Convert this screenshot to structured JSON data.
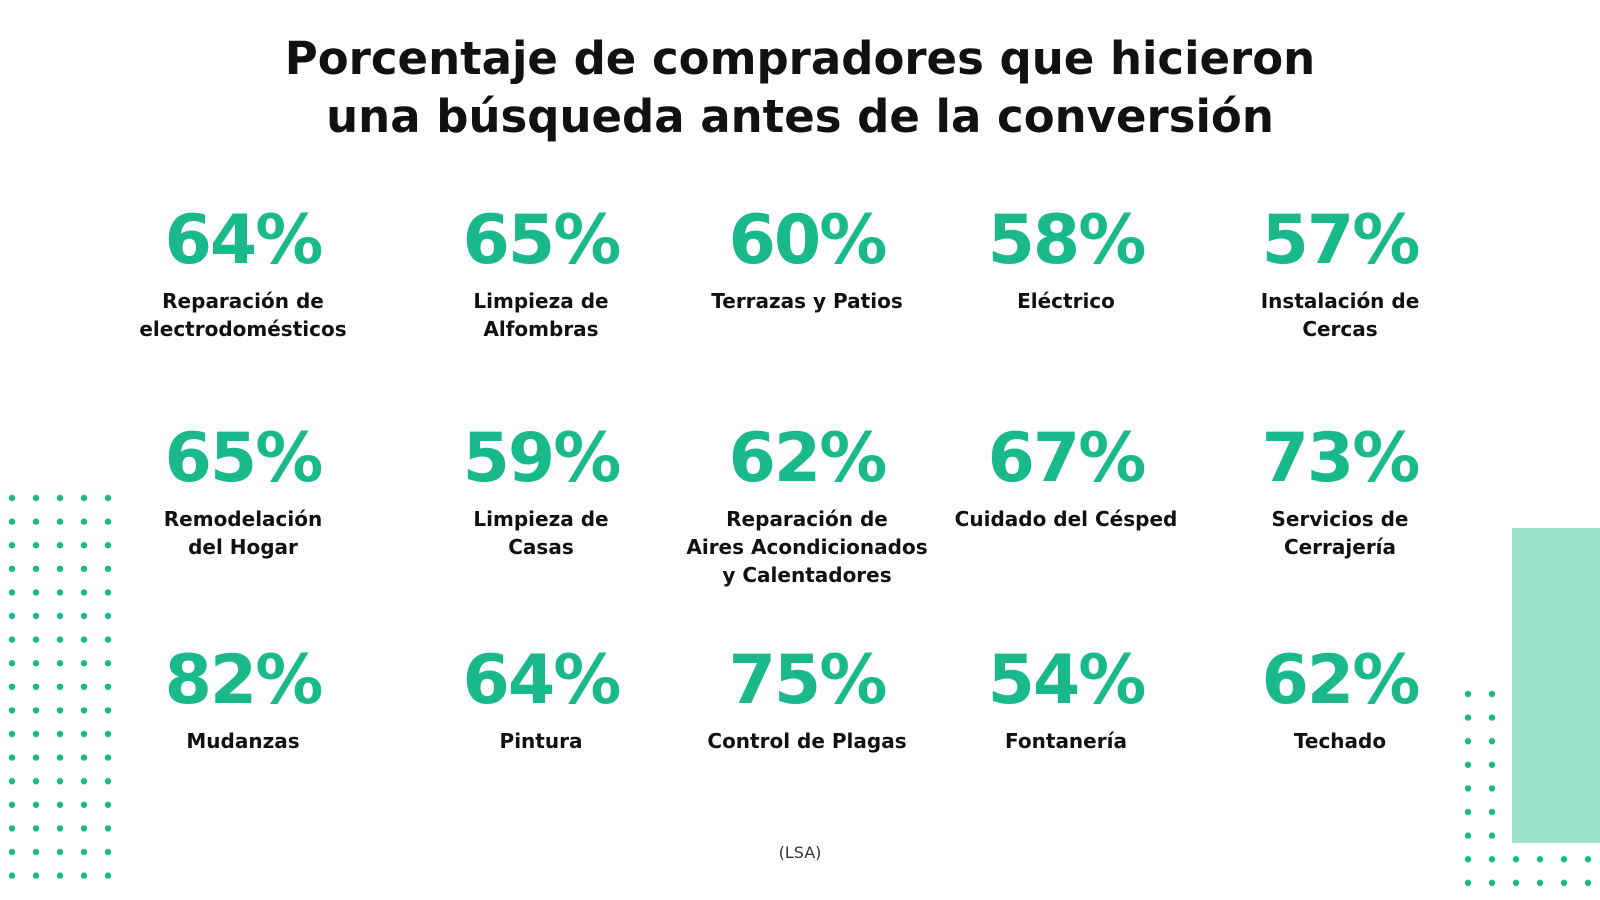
{
  "colors": {
    "accent": "#19b98b",
    "dots": "#19b98b",
    "panel": "#9de2cd",
    "text": "#111111"
  },
  "chart_data": {
    "type": "table",
    "title": "Porcentaje de compradores que hicieron una búsqueda antes de la conversión",
    "title_lines": [
      "Porcentaje de compradores que hicieron",
      "una búsqueda antes de la conversión"
    ],
    "source": "(LSA)",
    "items": [
      {
        "value": "64%",
        "label": "Reparación de\nelectrodomésticos"
      },
      {
        "value": "65%",
        "label": "Limpieza de\nAlfombras"
      },
      {
        "value": "60%",
        "label": "Terrazas y Patios"
      },
      {
        "value": "58%",
        "label": "Eléctrico"
      },
      {
        "value": "57%",
        "label": "Instalación de\nCercas"
      },
      {
        "value": "65%",
        "label": "Remodelación\ndel Hogar"
      },
      {
        "value": "59%",
        "label": "Limpieza de\nCasas"
      },
      {
        "value": "62%",
        "label": "Reparación de\nAires Acondicionados\ny Calentadores"
      },
      {
        "value": "67%",
        "label": "Cuidado del Césped"
      },
      {
        "value": "73%",
        "label": "Servicios de\nCerrajería"
      },
      {
        "value": "82%",
        "label": "Mudanzas"
      },
      {
        "value": "64%",
        "label": "Pintura"
      },
      {
        "value": "75%",
        "label": "Control de Plagas"
      },
      {
        "value": "54%",
        "label": "Fontanería"
      },
      {
        "value": "62%",
        "label": "Techado"
      }
    ]
  }
}
